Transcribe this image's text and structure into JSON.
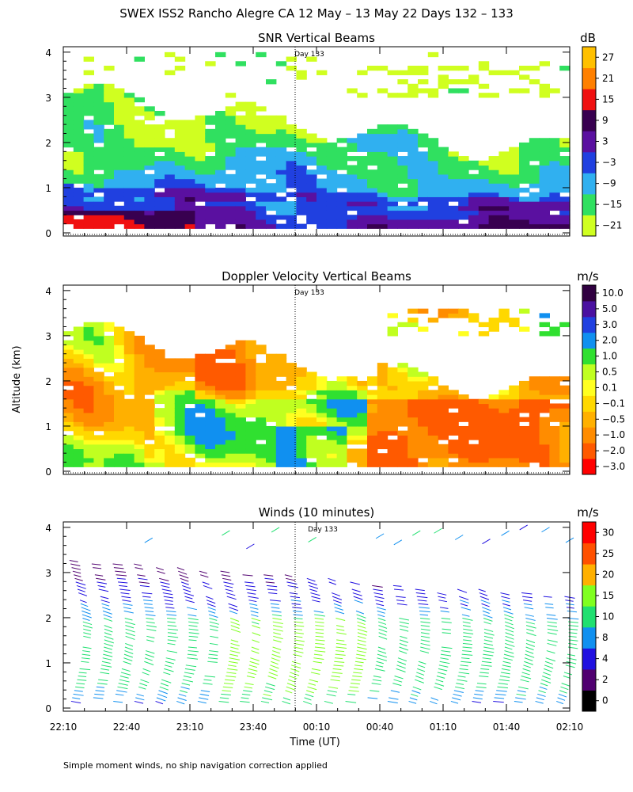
{
  "figure": {
    "title": "SWEX ISS2 Rancho Alegre CA  12 May – 13 May 22 Days 132 – 133",
    "ylabel": "Altitude (km)",
    "xlabel": "Time (UT)",
    "footnote": "Simple moment winds, no ship navigation correction applied",
    "day_marker": "Day 133",
    "x_ticks": [
      "22:10",
      "22:40",
      "23:10",
      "23:40",
      "00:10",
      "00:40",
      "01:10",
      "01:40",
      "02:10"
    ],
    "y_ticks": [
      "0",
      "1",
      "2",
      "3",
      "4"
    ]
  },
  "chart_data": [
    {
      "type": "heatmap",
      "title": "SNR Vertical Beams",
      "xlabel": "Time (UT)",
      "ylabel": "Altitude (km)",
      "xlim": [
        "22:10",
        "02:10"
      ],
      "ylim": [
        0,
        4
      ],
      "colorbar_unit": "dB",
      "colorbar_ticks": [
        "27",
        "21",
        "15",
        "9",
        "3",
        "−3",
        "−9",
        "−15",
        "−21"
      ],
      "colorbar_colors": [
        "#d0ff20",
        "#30e060",
        "#30b0f0",
        "#2040e0",
        "#5a10a0",
        "#380050",
        "#f01010",
        "#ff8000",
        "#ffc000"
      ],
      "summary": "Strong SNR (-3 to 3 dB) below 1 km, weakening with height; echo top descends from about 3 km at 22:10 to about 2 km after 00:40"
    },
    {
      "type": "heatmap",
      "title": "Doppler Velocity Vertical Beams",
      "xlabel": "Time (UT)",
      "ylabel": "Altitude (km)",
      "xlim": [
        "22:10",
        "02:10"
      ],
      "ylim": [
        0,
        4
      ],
      "colorbar_unit": "m/s",
      "colorbar_ticks": [
        "10.0",
        "5.0",
        "3.0",
        "2.0",
        "1.0",
        "0.5",
        "0.1",
        "−0.1",
        "−0.5",
        "−1.0",
        "−2.0",
        "−3.0"
      ],
      "colorbar_colors": [
        "#ff0000",
        "#ff5a00",
        "#ff8c00",
        "#ffb000",
        "#ffd800",
        "#ffff20",
        "#c0ff20",
        "#30e030",
        "#1090f0",
        "#2040e0",
        "#4a10a0",
        "#300040"
      ],
      "summary": "Mostly weak downward motion (-0.5 to -1 m/s) with patches of weak upward motion; stronger downward motion (-1 to -3 m/s) below 1.5 km after 00:40"
    },
    {
      "type": "scatter",
      "title": "Winds (10 minutes)",
      "xlabel": "Time (UT)",
      "ylabel": "Altitude (km)",
      "xlim": [
        "22:10",
        "02:10"
      ],
      "ylim": [
        0,
        4
      ],
      "colorbar_unit": "m/s",
      "colorbar_ticks": [
        "30",
        "25",
        "20",
        "15",
        "10",
        "8",
        "4",
        "2",
        "0"
      ],
      "colorbar_colors": [
        "#000000",
        "#500070",
        "#2010e0",
        "#1090f0",
        "#20e070",
        "#80ff20",
        "#ffb000",
        "#ff5000",
        "#ff0000"
      ],
      "summary": "Wind barbs in profiles every 10 minutes from 0 to about 3.5 km; mostly 4-15 m/s northwesterly flow with scattered barbs near 4 km"
    }
  ]
}
